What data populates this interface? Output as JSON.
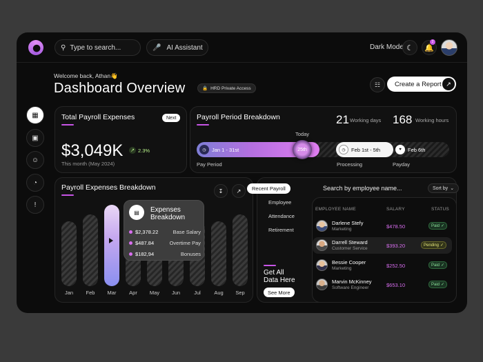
{
  "topbar": {
    "search_placeholder": "Type to search...",
    "ai_label": "AI Assistant",
    "dark_mode_label": "Dark Mode",
    "notification_count": "2"
  },
  "header": {
    "welcome": "Welcome back, Athan👋",
    "title": "Dashboard Overview",
    "access_badge": "HRD Private Access",
    "create_report": "Create a Report"
  },
  "payroll_expenses": {
    "title": "Total Payroll Expenses",
    "next_label": "Next",
    "amount": "$3,049K",
    "trend": "2.3%",
    "subtitle": "This month (May 2024)"
  },
  "period": {
    "title": "Payroll Period Breakdown",
    "working_days_num": "21",
    "working_days_label": "Working days",
    "working_hours_num": "168",
    "working_hours_label": "Working hours",
    "today_label": "Today",
    "today_value": "25th",
    "pay_range": "Jan 1 - 31st",
    "processing_range": "Feb 1st - 5th",
    "payday": "Feb 6th",
    "labels": {
      "pay_period": "Pay Period",
      "processing": "Processing",
      "payday": "Payday"
    }
  },
  "breakdown": {
    "title": "Payroll Expenses Breakdown",
    "tooltip_title_1": "Expenses",
    "tooltip_title_2": "Breakdown",
    "items": [
      {
        "value": "$2,378.22",
        "label": "Base Salary"
      },
      {
        "value": "$487.84",
        "label": "Overtime Pay"
      },
      {
        "value": "$182,94",
        "label": "Bonuses"
      }
    ]
  },
  "chart_data": {
    "type": "bar",
    "categories": [
      "Jan",
      "Feb",
      "Mar",
      "Apr",
      "May",
      "Jun",
      "Jul",
      "Aug",
      "Sep"
    ],
    "values": [
      0.8,
      0.88,
      1.0,
      0.8,
      0.8,
      0.88,
      0.8,
      0.8,
      0.88
    ],
    "active_index": 2,
    "title": "Payroll Expenses Breakdown",
    "xlabel": "",
    "ylabel": ""
  },
  "recent": {
    "tabs": [
      "Recent Payroll",
      "Employee",
      "Attendance",
      "Retirement"
    ],
    "search_placeholder": "Search by employee name...",
    "sort_label": "Sort by",
    "columns": {
      "name": "EMPLOYEE NAME",
      "salary": "SALARY",
      "status": "STATUS"
    },
    "rows": [
      {
        "name": "Darlene Stefy",
        "dept": "Marketing",
        "salary": "$478.50",
        "status": "Paid"
      },
      {
        "name": "Darrell Steward",
        "dept": "Customer Service",
        "salary": "$393.20",
        "status": "Pending"
      },
      {
        "name": "Bessie Cooper",
        "dept": "Marketing",
        "salary": "$252.50",
        "status": "Paid"
      },
      {
        "name": "Marvin McKinney",
        "dept": "Software Engineer",
        "salary": "$653.10",
        "status": "Paid"
      }
    ],
    "get_all_1": "Get All",
    "get_all_2": "Data Here",
    "see_more": "See More"
  }
}
